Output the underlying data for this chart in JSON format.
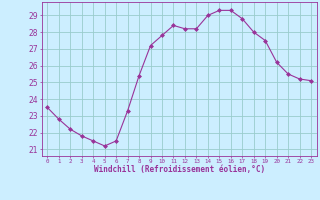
{
  "x": [
    0,
    1,
    2,
    3,
    4,
    5,
    6,
    7,
    8,
    9,
    10,
    11,
    12,
    13,
    14,
    15,
    16,
    17,
    18,
    19,
    20,
    21,
    22,
    23
  ],
  "y": [
    23.5,
    22.8,
    22.2,
    21.8,
    21.5,
    21.2,
    21.5,
    23.3,
    25.4,
    27.2,
    27.8,
    28.4,
    28.2,
    28.2,
    29.0,
    29.3,
    29.3,
    28.8,
    28.0,
    27.5,
    26.2,
    25.5,
    25.2,
    25.1
  ],
  "line_color": "#993399",
  "marker": "D",
  "marker_size": 2.0,
  "bg_color": "#cceeff",
  "grid_color": "#99cccc",
  "xlabel": "Windchill (Refroidissement éolien,°C)",
  "ylabel_ticks": [
    21,
    22,
    23,
    24,
    25,
    26,
    27,
    28,
    29
  ],
  "xtick_labels": [
    "0",
    "1",
    "2",
    "3",
    "4",
    "5",
    "6",
    "7",
    "8",
    "9",
    "10",
    "11",
    "12",
    "13",
    "14",
    "15",
    "16",
    "17",
    "18",
    "19",
    "20",
    "21",
    "22",
    "23"
  ],
  "xlim": [
    -0.5,
    23.5
  ],
  "ylim": [
    20.6,
    29.8
  ],
  "tick_color": "#993399",
  "spine_color": "#993399",
  "label_color": "#993399"
}
